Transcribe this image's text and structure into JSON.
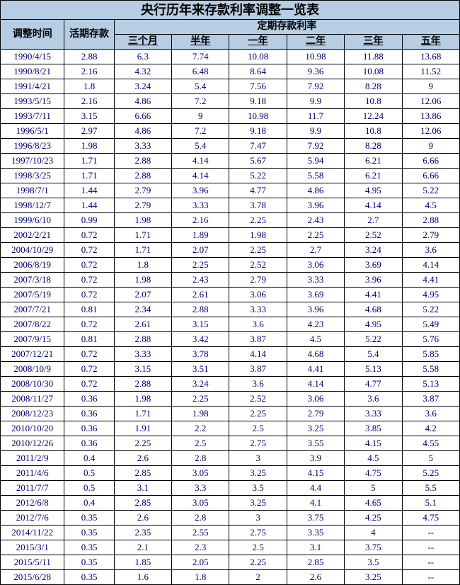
{
  "title": "央行历年来存款利率调整一览表",
  "headers": {
    "date": "调整时间",
    "demand": "活期存款",
    "group": "定期存款利率",
    "terms": [
      "三个月",
      "半年",
      "一年",
      "二年",
      "三年",
      "五年"
    ]
  },
  "rows": [
    {
      "d": "1990/4/15",
      "dem": "2.88",
      "v": [
        "6.3",
        "7.74",
        "10.08",
        "10.98",
        "11.88",
        "13.68"
      ]
    },
    {
      "d": "1990/8/21",
      "dem": "2.16",
      "v": [
        "4.32",
        "6.48",
        "8.64",
        "9.36",
        "10.08",
        "11.52"
      ]
    },
    {
      "d": "1991/4/21",
      "dem": "1.8",
      "v": [
        "3.24",
        "5.4",
        "7.56",
        "7.92",
        "8.28",
        "9"
      ]
    },
    {
      "d": "1993/5/15",
      "dem": "2.16",
      "v": [
        "4.86",
        "7.2",
        "9.18",
        "9.9",
        "10.8",
        "12.06"
      ]
    },
    {
      "d": "1993/7/11",
      "dem": "3.15",
      "v": [
        "6.66",
        "9",
        "10.98",
        "11.7",
        "12.24",
        "13.86"
      ]
    },
    {
      "d": "1996/5/1",
      "dem": "2.97",
      "v": [
        "4.86",
        "7.2",
        "9.18",
        "9.9",
        "10.8",
        "12.06"
      ]
    },
    {
      "d": "1996/8/23",
      "dem": "1.98",
      "v": [
        "3.33",
        "5.4",
        "7.47",
        "7.92",
        "8.28",
        "9"
      ]
    },
    {
      "d": "1997/10/23",
      "dem": "1.71",
      "v": [
        "2.88",
        "4.14",
        "5.67",
        "5.94",
        "6.21",
        "6.66"
      ]
    },
    {
      "d": "1998/3/25",
      "dem": "1.71",
      "v": [
        "2.88",
        "4.14",
        "5.22",
        "5.58",
        "6.21",
        "6.66"
      ]
    },
    {
      "d": "1998/7/1",
      "dem": "1.44",
      "v": [
        "2.79",
        "3.96",
        "4.77",
        "4.86",
        "4.95",
        "5.22"
      ]
    },
    {
      "d": "1998/12/7",
      "dem": "1.44",
      "v": [
        "2.79",
        "3.33",
        "3.78",
        "3.96",
        "4.14",
        "4.5"
      ]
    },
    {
      "d": "1999/6/10",
      "dem": "0.99",
      "v": [
        "1.98",
        "2.16",
        "2.25",
        "2.43",
        "2.7",
        "2.88"
      ]
    },
    {
      "d": "2002/2/21",
      "dem": "0.72",
      "v": [
        "1.71",
        "1.89",
        "1.98",
        "2.25",
        "2.52",
        "2.79"
      ]
    },
    {
      "d": "2004/10/29",
      "dem": "0.72",
      "v": [
        "1.71",
        "2.07",
        "2.25",
        "2.7",
        "3.24",
        "3.6"
      ]
    },
    {
      "d": "2006/8/19",
      "dem": "0.72",
      "v": [
        "1.8",
        "2.25",
        "2.52",
        "3.06",
        "3.69",
        "4.14"
      ]
    },
    {
      "d": "2007/3/18",
      "dem": "0.72",
      "v": [
        "1.98",
        "2.43",
        "2.79",
        "3.33",
        "3.96",
        "4.41"
      ]
    },
    {
      "d": "2007/5/19",
      "dem": "0.72",
      "v": [
        "2.07",
        "2.61",
        "3.06",
        "3.69",
        "4.41",
        "4.95"
      ]
    },
    {
      "d": "2007/7/21",
      "dem": "0.81",
      "v": [
        "2.34",
        "2.88",
        "3.33",
        "3.96",
        "4.68",
        "5.22"
      ]
    },
    {
      "d": "2007/8/22",
      "dem": "0.72",
      "v": [
        "2.61",
        "3.15",
        "3.6",
        "4.23",
        "4.95",
        "5.49"
      ]
    },
    {
      "d": "2007/9/15",
      "dem": "0.81",
      "v": [
        "2.88",
        "3.42",
        "3.87",
        "4.5",
        "5.22",
        "5.76"
      ]
    },
    {
      "d": "2007/12/21",
      "dem": "0.72",
      "v": [
        "3.33",
        "3.78",
        "4.14",
        "4.68",
        "5.4",
        "5.85"
      ]
    },
    {
      "d": "2008/10/9",
      "dem": "0.72",
      "v": [
        "3.15",
        "3.51",
        "3.87",
        "4.41",
        "5.13",
        "5.58"
      ]
    },
    {
      "d": "2008/10/30",
      "dem": "0.72",
      "v": [
        "2.88",
        "3.24",
        "3.6",
        "4.14",
        "4.77",
        "5.13"
      ]
    },
    {
      "d": "2008/11/27",
      "dem": "0.36",
      "v": [
        "1.98",
        "2.25",
        "2.52",
        "3.06",
        "3.6",
        "3.87"
      ]
    },
    {
      "d": "2008/12/23",
      "dem": "0.36",
      "v": [
        "1.71",
        "1.98",
        "2.25",
        "2.79",
        "3.33",
        "3.6"
      ]
    },
    {
      "d": "2010/10/20",
      "dem": "0.36",
      "v": [
        "1.91",
        "2.2",
        "2.5",
        "3.25",
        "3.85",
        "4.2"
      ]
    },
    {
      "d": "2010/12/26",
      "dem": "0.36",
      "v": [
        "2.25",
        "2.5",
        "2.75",
        "3.55",
        "4.15",
        "4.55"
      ]
    },
    {
      "d": "2011/2/9",
      "dem": "0.4",
      "v": [
        "2.6",
        "2.8",
        "3",
        "3.9",
        "4.5",
        "5"
      ]
    },
    {
      "d": "2011/4/6",
      "dem": "0.5",
      "v": [
        "2.85",
        "3.05",
        "3.25",
        "4.15",
        "4.75",
        "5.25"
      ]
    },
    {
      "d": "2011/7/7",
      "dem": "0.5",
      "v": [
        "3.1",
        "3.3",
        "3.5",
        "4.4",
        "5",
        "5.5"
      ]
    },
    {
      "d": "2012/6/8",
      "dem": "0.4",
      "v": [
        "2.85",
        "3.05",
        "3.25",
        "4.1",
        "4.65",
        "5.1"
      ]
    },
    {
      "d": "2012/7/6",
      "dem": "0.35",
      "v": [
        "2.6",
        "2.8",
        "3",
        "3.75",
        "4.25",
        "4.75"
      ]
    },
    {
      "d": "2014/11/22",
      "dem": "0.35",
      "v": [
        "2.35",
        "2.55",
        "2.75",
        "3.35",
        "4",
        "--"
      ]
    },
    {
      "d": "2015/3/1",
      "dem": "0.35",
      "v": [
        "2.1",
        "2.3",
        "2.5",
        "3.1",
        "3.75",
        "--"
      ]
    },
    {
      "d": "2015/5/11",
      "dem": "0.35",
      "v": [
        "1.85",
        "2.05",
        "2.25",
        "2.85",
        "3.5",
        "--"
      ]
    },
    {
      "d": "2015/6/28",
      "dem": "0.35",
      "v": [
        "1.6",
        "1.8",
        "2",
        "2.6",
        "3.25",
        "--"
      ]
    }
  ]
}
